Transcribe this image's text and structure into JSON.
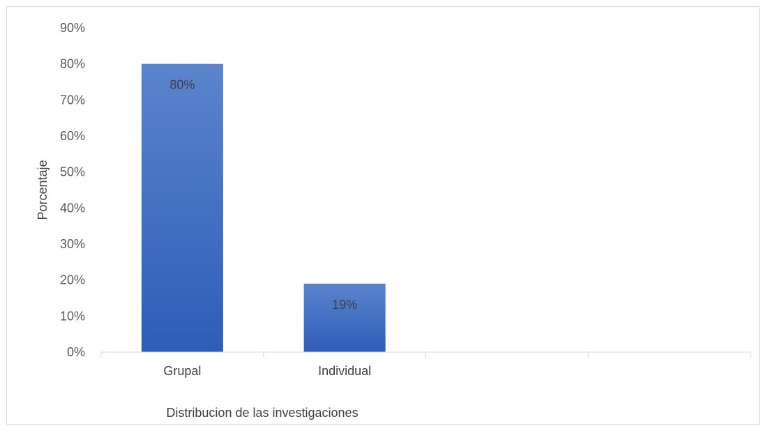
{
  "chart_data": {
    "type": "bar",
    "categories": [
      "Grupal",
      "Individual",
      "",
      ""
    ],
    "values": [
      80,
      19,
      null,
      null
    ],
    "data_labels": [
      "80%",
      "19%",
      "",
      ""
    ],
    "xlabel": "Distribucion de las investigaciones",
    "ylabel": "Porcentaje",
    "ylim": [
      0,
      90
    ],
    "y_ticks": [
      0,
      10,
      20,
      30,
      40,
      50,
      60,
      70,
      80,
      90
    ],
    "y_tick_labels": [
      "0%",
      "10%",
      "20%",
      "30%",
      "40%",
      "50%",
      "60%",
      "70%",
      "80%",
      "90%"
    ],
    "grid": false,
    "bar_color_top": "#5b84cc",
    "bar_color_bottom": "#2e5db8",
    "axis_color": "#d9d9d9"
  }
}
